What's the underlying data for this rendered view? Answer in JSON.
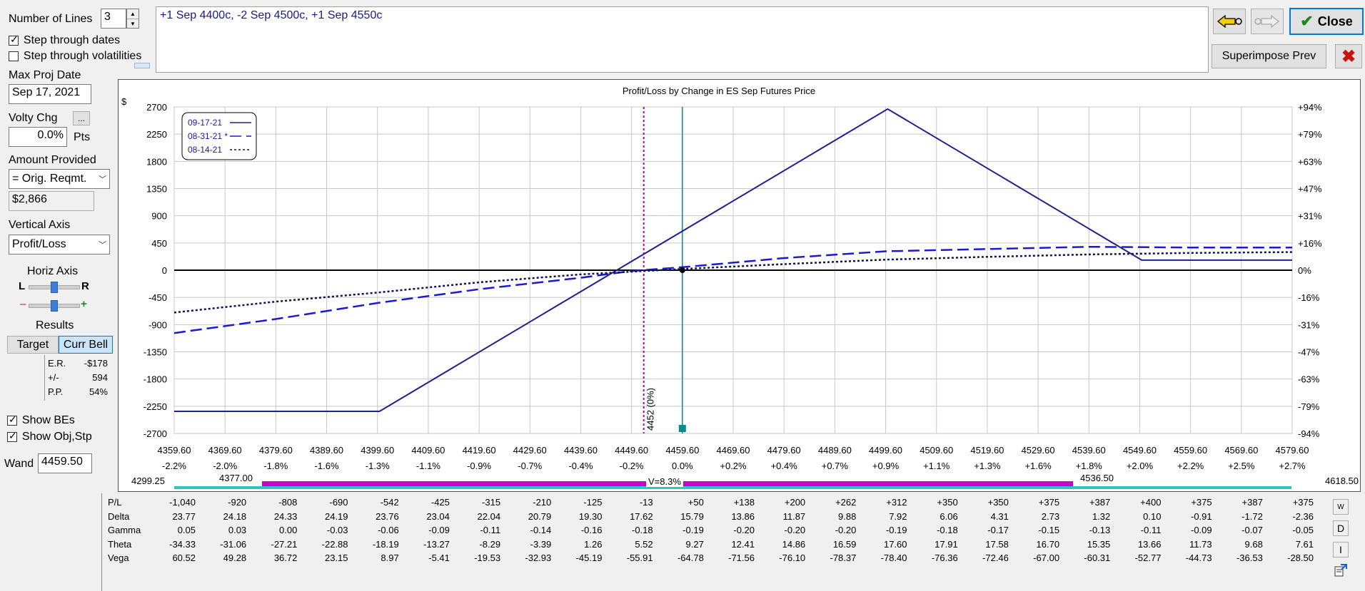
{
  "controls": {
    "number_of_lines_label": "Number of Lines",
    "number_of_lines_value": "3",
    "step_dates_label": "Step through dates",
    "step_dates_checked": true,
    "step_vol_label": "Step through volatilities",
    "step_vol_checked": false,
    "max_proj_date_label": "Max Proj Date",
    "max_proj_date_value": "Sep 17, 2021",
    "volty_chg_label": "Volty Chg",
    "volty_chg_ellipsis": "...",
    "volty_chg_value": "0.0%",
    "volty_chg_unit": "Pts",
    "amount_provided_label": "Amount Provided",
    "amount_provided_option": "= Orig. Reqmt.",
    "amount_value": "$2,866",
    "vertical_axis_label": "Vertical Axis",
    "vertical_axis_option": "Profit/Loss",
    "horiz_axis_label": "Horiz Axis",
    "horiz_left": "L",
    "horiz_right": "R",
    "zoom_minus": "–",
    "zoom_plus": "+",
    "results_label": "Results",
    "target_button": "Target",
    "curr_bell_button": "Curr Bell",
    "stats": [
      {
        "label": "E.R.",
        "value": "-$178"
      },
      {
        "label": "+/-",
        "value": "594"
      },
      {
        "label": "P.P.",
        "value": "54%"
      }
    ],
    "show_bes_label": "Show BEs",
    "show_bes_checked": true,
    "show_obj_label": "Show Obj,Stp",
    "show_obj_checked": true,
    "wand_label": "Wand",
    "wand_value": "4459.50"
  },
  "strategy_text": "+1 Sep 4400c, -2 Sep 4500c, +1 Sep 4550c",
  "toolbar": {
    "back_icon": "arrow-left-icon",
    "forward_icon": "arrow-right-icon",
    "close_label": "Close",
    "superimpose_label": "Superimpose Prev",
    "colors": {
      "close_check": "#1a8a1a",
      "x_red": "#cc1111"
    }
  },
  "chart_data": {
    "type": "line",
    "title": "Profit/Loss by Change in ES Sep Futures Price",
    "y_unit": "$",
    "ylim": [
      -2700,
      2700
    ],
    "y_ticks": [
      2700,
      2250,
      1800,
      1350,
      900,
      450,
      0,
      -450,
      -900,
      -1350,
      -1800,
      -2250,
      -2700
    ],
    "y2_ticks": [
      "+94%",
      "+79%",
      "+63%",
      "+47%",
      "+31%",
      "+16%",
      "0%",
      "-16%",
      "-31%",
      "-47%",
      "-63%",
      "-79%",
      "-94%"
    ],
    "xlim": [
      4359.6,
      4579.6
    ],
    "x_ticks": [
      "4359.60",
      "4369.60",
      "4379.60",
      "4389.60",
      "4399.60",
      "4409.60",
      "4419.60",
      "4429.60",
      "4439.60",
      "4449.60",
      "4459.60",
      "4469.60",
      "4479.60",
      "4489.60",
      "4499.60",
      "4509.60",
      "4519.60",
      "4529.60",
      "4539.60",
      "4549.60",
      "4559.60",
      "4569.60",
      "4579.60"
    ],
    "x_pct_ticks": [
      "-2.2%",
      "-2.0%",
      "-1.8%",
      "-1.6%",
      "-1.3%",
      "-1.1%",
      "-0.9%",
      "-0.7%",
      "-0.4%",
      "-0.2%",
      "0.0%",
      "+0.2%",
      "+0.4%",
      "+0.7%",
      "+0.9%",
      "+1.1%",
      "+1.3%",
      "+1.6%",
      "+1.8%",
      "+2.0%",
      "+2.2%",
      "+2.5%",
      "+2.7%"
    ],
    "legend": [
      "09-17-21",
      "08-31-21",
      "08-14-21"
    ],
    "series": [
      {
        "name": "09-17-21",
        "style": "solid",
        "color": "#1f1f8f",
        "x": [
          4359.6,
          4400,
          4500,
          4550,
          4579.6
        ],
        "y": [
          -2334,
          -2334,
          2666,
          166,
          166
        ]
      },
      {
        "name": "08-31-21",
        "style": "dashed",
        "color": "#1a1ad6",
        "x": [
          4359.6,
          4379.6,
          4399.6,
          4419.6,
          4439.6,
          4449.6,
          4459.6,
          4479.6,
          4499.6,
          4519.6,
          4539.6,
          4559.6,
          4579.6
        ],
        "y": [
          -1040,
          -808,
          -542,
          -315,
          -125,
          -13,
          50,
          200,
          312,
          350,
          387,
          375,
          375
        ]
      },
      {
        "name": "08-14-21",
        "style": "dotted",
        "color": "#111155",
        "x": [
          4359.6,
          4379.6,
          4399.6,
          4419.6,
          4439.6,
          4459.6,
          4479.6,
          4499.6,
          4519.6,
          4539.6,
          4559.6,
          4579.6
        ],
        "y": [
          -700,
          -520,
          -370,
          -200,
          -70,
          20,
          100,
          175,
          220,
          260,
          285,
          300
        ]
      }
    ],
    "current_price": 4459.6,
    "breakeven_x": 4452,
    "breakeven_label": "4452 (0%)",
    "grid": true
  },
  "range_bar": {
    "left_value": "4299.25",
    "inner_left": "4377.00",
    "center_label": "V=8.3%",
    "inner_right": "4536.50",
    "right_value": "4618.50"
  },
  "table": {
    "rows": [
      {
        "label": "P/L",
        "values": [
          "-1,040",
          "-920",
          "-808",
          "-690",
          "-542",
          "-425",
          "-315",
          "-210",
          "-125",
          "-13",
          "+50",
          "+138",
          "+200",
          "+262",
          "+312",
          "+350",
          "+350",
          "+375",
          "+387",
          "+400",
          "+375",
          "+387",
          "+375"
        ]
      },
      {
        "label": "Delta",
        "values": [
          "23.77",
          "24.18",
          "24.33",
          "24.19",
          "23.76",
          "23.04",
          "22.04",
          "20.79",
          "19.30",
          "17.62",
          "15.79",
          "13.86",
          "11.87",
          "9.88",
          "7.92",
          "6.06",
          "4.31",
          "2.73",
          "1.32",
          "0.10",
          "-0.91",
          "-1.72",
          "-2.36"
        ]
      },
      {
        "label": "Gamma",
        "values": [
          "0.05",
          "0.03",
          "0.00",
          "-0.03",
          "-0.06",
          "-0.09",
          "-0.11",
          "-0.14",
          "-0.16",
          "-0.18",
          "-0.19",
          "-0.20",
          "-0.20",
          "-0.20",
          "-0.19",
          "-0.18",
          "-0.17",
          "-0.15",
          "-0.13",
          "-0.11",
          "-0.09",
          "-0.07",
          "-0.05"
        ]
      },
      {
        "label": "Theta",
        "values": [
          "-34.33",
          "-31.06",
          "-27.21",
          "-22.88",
          "-18.19",
          "-13.27",
          "-8.29",
          "-3.39",
          "1.26",
          "5.52",
          "9.27",
          "12.41",
          "14.86",
          "16.59",
          "17.60",
          "17.91",
          "17.58",
          "16.70",
          "15.35",
          "13.66",
          "11.73",
          "9.68",
          "7.61"
        ]
      },
      {
        "label": "Vega",
        "values": [
          "60.52",
          "49.28",
          "36.72",
          "23.15",
          "8.97",
          "-5.41",
          "-19.53",
          "-32.93",
          "-45.19",
          "-55.91",
          "-64.78",
          "-71.56",
          "-76.10",
          "-78.37",
          "-78.40",
          "-76.36",
          "-72.46",
          "-67.00",
          "-60.31",
          "-52.77",
          "-44.73",
          "-36.53",
          "-28.50"
        ]
      }
    ],
    "side_buttons": [
      "W",
      "D",
      "I"
    ]
  }
}
